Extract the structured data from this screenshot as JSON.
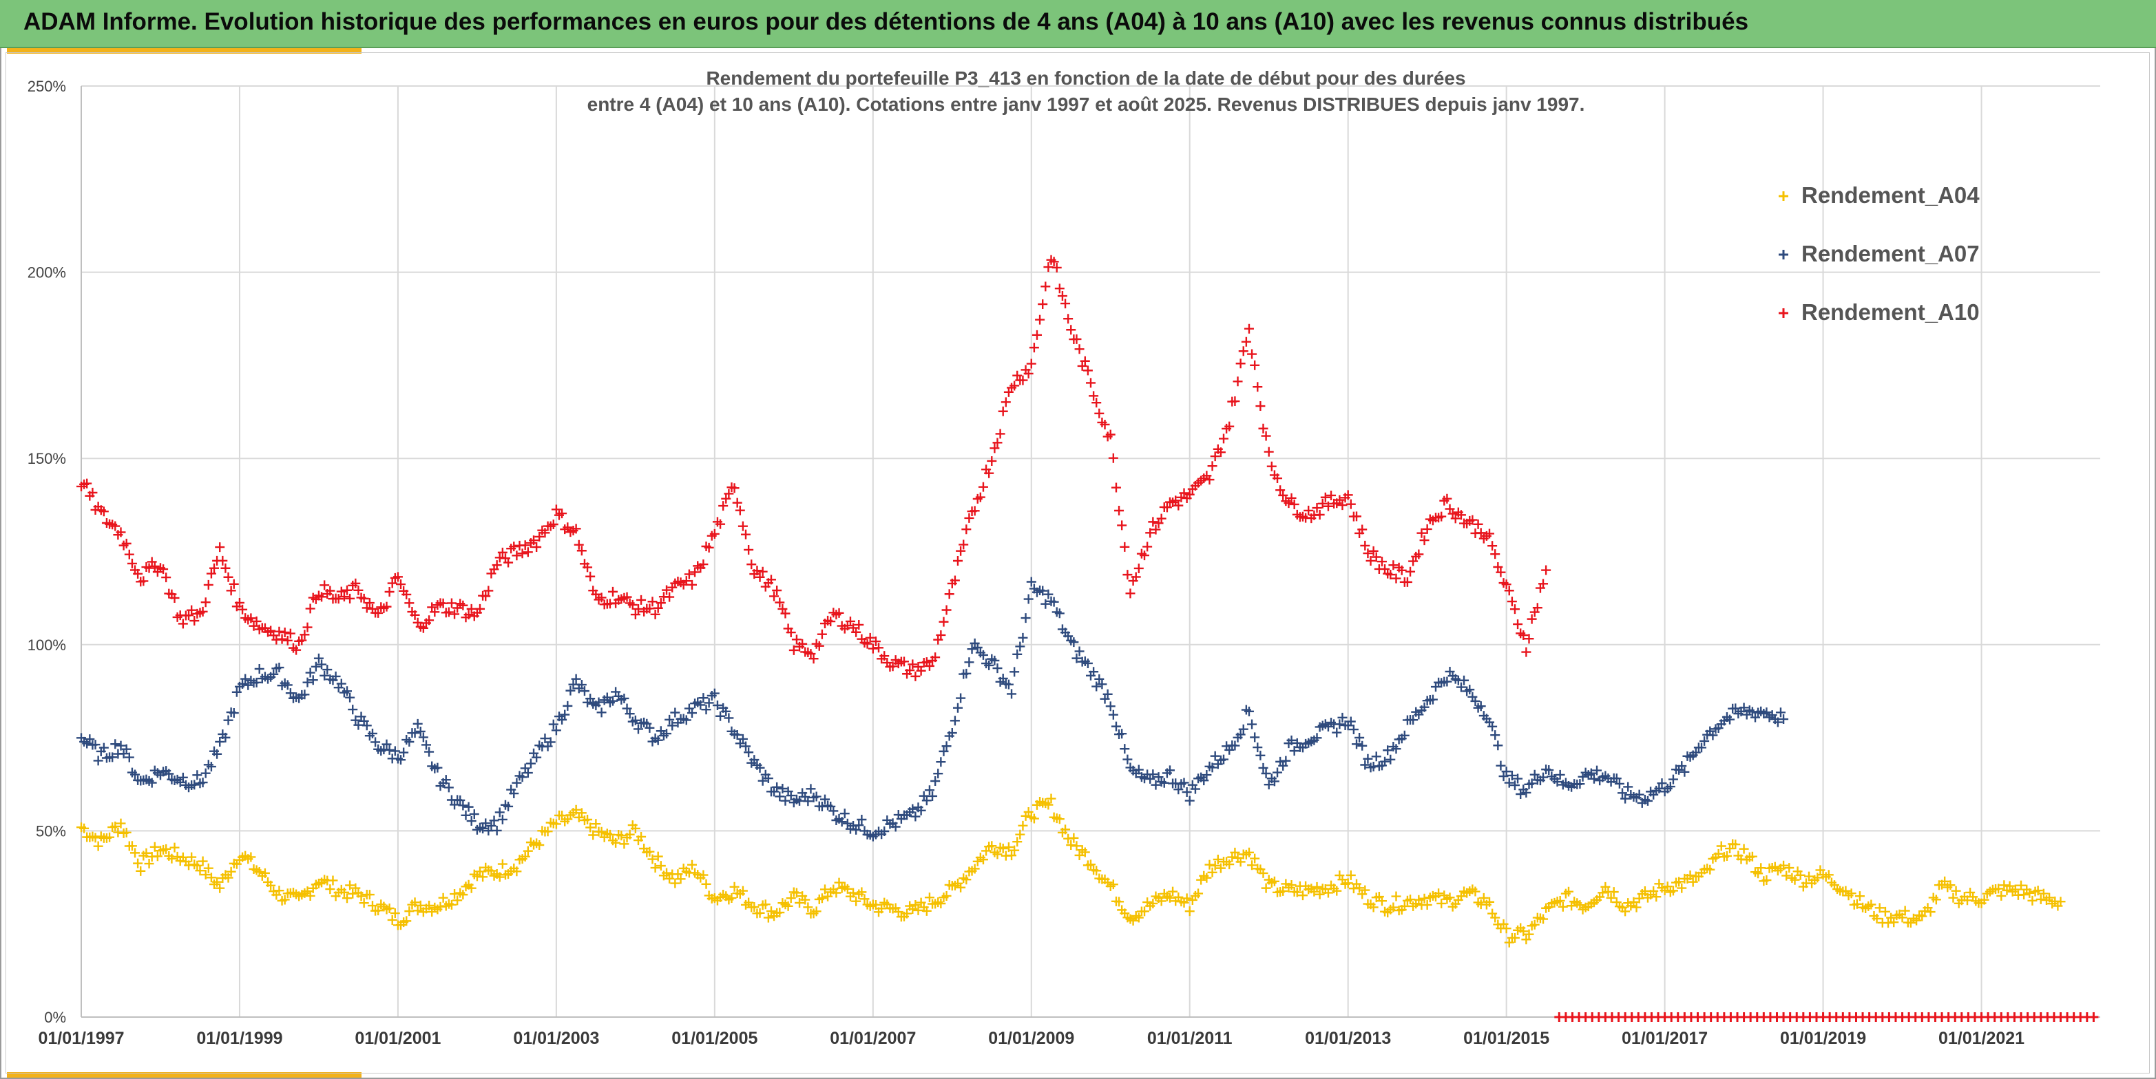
{
  "header": {
    "title": "ADAM Informe. Evolution historique des performances en euros pour des détentions de 4 ans (A04) à 10 ans (A10) avec les revenus connus distribués"
  },
  "colors": {
    "banner": "#7cc47a",
    "accent": "#f2b21a",
    "a04": "#f5c000",
    "a07": "#2e4a7d",
    "a10": "#e8141c"
  },
  "chart_data": {
    "type": "scatter",
    "title_line1": "Rendement du portefeuille P3_413 en fonction de la date de début pour des durées",
    "title_line2": "entre 4 (A04) et 10 ans (A10). Cotations entre janv 1997 et août 2025. Revenus DISTRIBUES depuis janv 1997.",
    "ylim": [
      0,
      250
    ],
    "xlim": [
      "01/01/1997",
      "01/07/2022"
    ],
    "y_ticks": [
      "0%",
      "50%",
      "100%",
      "150%",
      "200%",
      "250%"
    ],
    "x_ticks": [
      "01/01/1997",
      "01/01/1999",
      "01/01/2001",
      "01/01/2003",
      "01/01/2005",
      "01/01/2007",
      "01/01/2009",
      "01/01/2011",
      "01/01/2013",
      "01/01/2015",
      "01/01/2017",
      "01/01/2019",
      "01/01/2021"
    ],
    "marker": "+",
    "grid": true,
    "legend_position": "top-right",
    "series": [
      {
        "name": "Rendement_A04",
        "color": "#f5c000",
        "x": [
          "1997-01",
          "1997-04",
          "1997-07",
          "1997-10",
          "1998-01",
          "1998-04",
          "1998-07",
          "1998-10",
          "1999-01",
          "1999-04",
          "1999-07",
          "1999-10",
          "2000-01",
          "2000-04",
          "2000-07",
          "2000-10",
          "2001-01",
          "2001-04",
          "2001-07",
          "2001-10",
          "2002-01",
          "2002-04",
          "2002-07",
          "2002-10",
          "2003-01",
          "2003-04",
          "2003-07",
          "2003-10",
          "2004-01",
          "2004-04",
          "2004-07",
          "2004-10",
          "2005-01",
          "2005-04",
          "2005-07",
          "2005-10",
          "2006-01",
          "2006-04",
          "2006-07",
          "2006-10",
          "2007-01",
          "2007-04",
          "2007-07",
          "2007-10",
          "2008-01",
          "2008-04",
          "2008-07",
          "2008-10",
          "2009-01",
          "2009-04",
          "2009-07",
          "2009-10",
          "2010-01",
          "2010-04",
          "2010-07",
          "2010-10",
          "2011-01",
          "2011-04",
          "2011-07",
          "2011-10",
          "2012-01",
          "2012-04",
          "2012-07",
          "2012-10",
          "2013-01",
          "2013-04",
          "2013-07",
          "2013-10",
          "2014-01",
          "2014-04",
          "2014-07",
          "2014-10",
          "2015-01",
          "2015-04",
          "2015-07",
          "2015-10",
          "2016-01",
          "2016-04",
          "2016-07",
          "2016-10",
          "2017-01",
          "2017-04",
          "2017-07",
          "2017-10",
          "2018-01",
          "2018-04",
          "2018-07",
          "2018-10",
          "2019-01",
          "2019-04",
          "2019-07",
          "2019-10",
          "2020-01",
          "2020-04",
          "2020-07",
          "2020-10",
          "2021-01",
          "2021-04",
          "2021-07",
          "2021-10",
          "2022-01"
        ],
        "y": [
          51,
          47,
          52,
          41,
          45,
          43,
          41,
          35,
          44,
          39,
          33,
          31,
          37,
          34,
          33,
          30,
          26,
          30,
          30,
          33,
          38,
          39,
          41,
          47,
          52,
          54,
          50,
          47,
          50,
          42,
          37,
          40,
          32,
          34,
          30,
          28,
          32,
          29,
          35,
          33,
          30,
          29,
          28,
          31,
          34,
          40,
          46,
          45,
          55,
          57,
          47,
          42,
          35,
          27,
          30,
          33,
          30,
          40,
          43,
          44,
          35,
          34,
          34,
          35,
          37,
          32,
          30,
          31,
          32,
          31,
          33,
          31,
          22,
          22,
          28,
          32,
          30,
          35,
          30,
          32,
          35,
          36,
          38,
          45,
          44,
          38,
          40,
          37,
          38,
          35,
          30,
          27,
          27,
          26,
          35,
          32,
          32,
          34,
          34,
          32,
          31
        ]
      },
      {
        "name": "Rendement_A07",
        "color": "#2e4a7d",
        "x": [
          "1997-01",
          "1997-04",
          "1997-07",
          "1997-10",
          "1998-01",
          "1998-04",
          "1998-07",
          "1998-10",
          "1999-01",
          "1999-04",
          "1999-07",
          "1999-10",
          "2000-01",
          "2000-04",
          "2000-07",
          "2000-10",
          "2001-01",
          "2001-04",
          "2001-07",
          "2001-10",
          "2002-01",
          "2002-04",
          "2002-07",
          "2002-10",
          "2003-01",
          "2003-04",
          "2003-07",
          "2003-10",
          "2004-01",
          "2004-04",
          "2004-07",
          "2004-10",
          "2005-01",
          "2005-04",
          "2005-07",
          "2005-10",
          "2006-01",
          "2006-04",
          "2006-07",
          "2006-10",
          "2007-01",
          "2007-04",
          "2007-07",
          "2007-10",
          "2008-01",
          "2008-04",
          "2008-07",
          "2008-10",
          "2009-01",
          "2009-04",
          "2009-07",
          "2009-10",
          "2010-01",
          "2010-04",
          "2010-07",
          "2010-10",
          "2011-01",
          "2011-04",
          "2011-07",
          "2011-10",
          "2012-01",
          "2012-04",
          "2012-07",
          "2012-10",
          "2013-01",
          "2013-04",
          "2013-07",
          "2013-10",
          "2014-01",
          "2014-04",
          "2014-07",
          "2014-10",
          "2015-01",
          "2015-04",
          "2015-07",
          "2015-10",
          "2016-01",
          "2016-04",
          "2016-07",
          "2016-10",
          "2017-01",
          "2017-04",
          "2017-07",
          "2017-10",
          "2018-01",
          "2018-04",
          "2018-07"
        ],
        "y": [
          75,
          70,
          73,
          63,
          66,
          64,
          63,
          72,
          88,
          92,
          92,
          85,
          95,
          90,
          80,
          73,
          70,
          77,
          65,
          58,
          52,
          52,
          62,
          70,
          78,
          90,
          82,
          87,
          80,
          75,
          80,
          83,
          85,
          77,
          68,
          61,
          58,
          60,
          55,
          52,
          50,
          52,
          54,
          60,
          78,
          100,
          95,
          88,
          115,
          112,
          100,
          93,
          85,
          66,
          63,
          65,
          60,
          67,
          72,
          82,
          62,
          72,
          75,
          77,
          80,
          68,
          70,
          78,
          85,
          92,
          88,
          82,
          64,
          61,
          67,
          62,
          65,
          65,
          60,
          59,
          62,
          67,
          75,
          80,
          82,
          82,
          80
        ]
      },
      {
        "name": "Rendement_A10",
        "color": "#e8141c",
        "x": [
          "1997-01",
          "1997-04",
          "1997-07",
          "1997-10",
          "1998-01",
          "1998-04",
          "1998-07",
          "1998-10",
          "1999-01",
          "1999-04",
          "1999-07",
          "1999-10",
          "2000-01",
          "2000-04",
          "2000-07",
          "2000-10",
          "2001-01",
          "2001-04",
          "2001-07",
          "2001-10",
          "2002-01",
          "2002-04",
          "2002-07",
          "2002-10",
          "2003-01",
          "2003-04",
          "2003-07",
          "2003-10",
          "2004-01",
          "2004-04",
          "2004-07",
          "2004-10",
          "2005-01",
          "2005-04",
          "2005-07",
          "2005-10",
          "2006-01",
          "2006-04",
          "2006-07",
          "2006-10",
          "2007-01",
          "2007-04",
          "2007-07",
          "2007-10",
          "2008-01",
          "2008-04",
          "2008-07",
          "2008-10",
          "2009-01",
          "2009-04",
          "2009-07",
          "2009-10",
          "2010-01",
          "2010-04",
          "2010-07",
          "2010-10",
          "2011-01",
          "2011-04",
          "2011-07",
          "2011-10",
          "2012-01",
          "2012-04",
          "2012-07",
          "2012-10",
          "2013-01",
          "2013-04",
          "2013-07",
          "2013-10",
          "2014-01",
          "2014-04",
          "2014-07",
          "2014-10",
          "2015-01",
          "2015-04",
          "2015-07"
        ],
        "y": [
          144,
          135,
          130,
          118,
          122,
          107,
          108,
          125,
          110,
          105,
          103,
          100,
          115,
          112,
          115,
          107,
          118,
          105,
          110,
          110,
          108,
          122,
          125,
          128,
          135,
          130,
          112,
          113,
          110,
          110,
          115,
          118,
          130,
          143,
          120,
          115,
          100,
          98,
          108,
          105,
          100,
          95,
          93,
          95,
          115,
          135,
          150,
          170,
          175,
          205,
          185,
          170,
          155,
          115,
          130,
          138,
          140,
          145,
          160,
          185,
          150,
          138,
          135,
          138,
          140,
          125,
          120,
          118,
          132,
          138,
          133,
          130,
          115,
          100,
          120
        ]
      },
      {
        "name": "",
        "color": "#e8141c",
        "constant": 0,
        "x_range": [
          "2015-09",
          "2022-06"
        ]
      }
    ]
  }
}
